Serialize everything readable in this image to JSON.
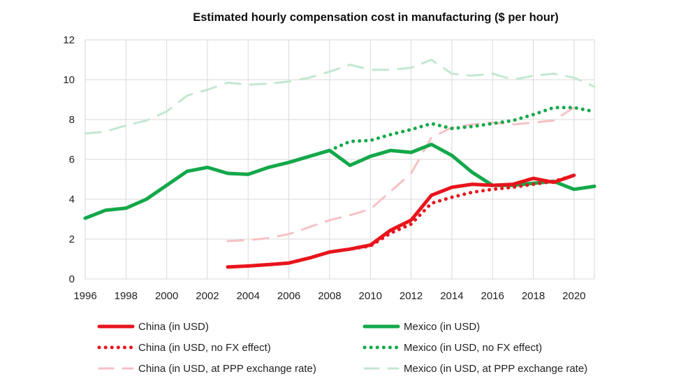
{
  "chart_data": {
    "type": "line",
    "title": "Estimated hourly compensation cost in manufacturing ($ per hour)",
    "xlabel": "",
    "ylabel": "",
    "xlim": [
      1996,
      2021
    ],
    "ylim": [
      0,
      12
    ],
    "x_ticks": [
      "1996",
      "1998",
      "2000",
      "2002",
      "2004",
      "2006",
      "2008",
      "2010",
      "2012",
      "2014",
      "2016",
      "2018",
      "2020"
    ],
    "y_ticks": [
      "0",
      "2",
      "4",
      "6",
      "8",
      "10",
      "12"
    ],
    "grid": true,
    "legend_position": "bottom",
    "colors": {
      "china": "#e8141c",
      "mexico": "#13a84a",
      "china_light": "#f7c1c4",
      "mexico_light": "#c3e8d0"
    },
    "series": [
      {
        "name": "Mexico (in USD, at PPP exchange rate)",
        "color": "#c3e8d0",
        "style": "dash",
        "width": 3,
        "x": [
          1996,
          1997,
          1998,
          1999,
          2000,
          2001,
          2002,
          2003,
          2004,
          2005,
          2006,
          2007,
          2008,
          2009,
          2010,
          2011,
          2012,
          2013,
          2014,
          2015,
          2016,
          2017,
          2018,
          2019,
          2020,
          2021
        ],
        "y": [
          7.3,
          7.4,
          7.7,
          7.95,
          8.4,
          9.2,
          9.5,
          9.85,
          9.75,
          9.8,
          9.9,
          10.1,
          10.4,
          10.75,
          10.5,
          10.5,
          10.6,
          11.0,
          10.3,
          10.2,
          10.3,
          10.0,
          10.2,
          10.3,
          10.1,
          9.65
        ]
      },
      {
        "name": "China (in USD, at PPP exchange rate)",
        "color": "#f7c1c4",
        "style": "dash",
        "width": 3,
        "x": [
          2003,
          2004,
          2005,
          2006,
          2007,
          2008,
          2009,
          2010,
          2011,
          2012,
          2013,
          2014,
          2015,
          2016,
          2017,
          2018,
          2019,
          2020
        ],
        "y": [
          1.9,
          1.95,
          2.05,
          2.25,
          2.6,
          2.95,
          3.2,
          3.5,
          4.4,
          5.3,
          7.1,
          7.6,
          7.75,
          7.85,
          7.75,
          7.85,
          7.95,
          8.6
        ]
      },
      {
        "name": "Mexico (in USD)",
        "color": "#13a84a",
        "style": "solid",
        "width": 5,
        "x": [
          1996,
          1997,
          1998,
          1999,
          2000,
          2001,
          2002,
          2003,
          2004,
          2005,
          2006,
          2007,
          2008,
          2009,
          2010,
          2011,
          2012,
          2013,
          2014,
          2015,
          2016,
          2017,
          2018,
          2019,
          2020,
          2021
        ],
        "y": [
          3.05,
          3.45,
          3.55,
          4.0,
          4.7,
          5.4,
          5.6,
          5.3,
          5.25,
          5.6,
          5.85,
          6.15,
          6.45,
          5.7,
          6.15,
          6.45,
          6.35,
          6.75,
          6.2,
          5.35,
          4.7,
          4.7,
          4.8,
          4.9,
          4.5,
          4.65
        ]
      },
      {
        "name": "Mexico (in USD, no FX effect)",
        "color": "#13a84a",
        "style": "dot",
        "width": 5,
        "x": [
          2008,
          2009,
          2010,
          2011,
          2012,
          2013,
          2014,
          2015,
          2016,
          2017,
          2018,
          2019,
          2020,
          2021
        ],
        "y": [
          6.45,
          6.9,
          6.95,
          7.25,
          7.5,
          7.8,
          7.55,
          7.65,
          7.8,
          7.95,
          8.25,
          8.6,
          8.6,
          8.4
        ]
      },
      {
        "name": "China (in USD)",
        "color": "#e8141c",
        "style": "solid",
        "width": 5,
        "x": [
          2003,
          2004,
          2005,
          2006,
          2007,
          2008,
          2009,
          2010,
          2011,
          2012,
          2013,
          2014,
          2015,
          2016,
          2017,
          2018,
          2019,
          2020
        ],
        "y": [
          0.6,
          0.65,
          0.72,
          0.8,
          1.05,
          1.35,
          1.5,
          1.7,
          2.45,
          2.95,
          4.2,
          4.6,
          4.75,
          4.7,
          4.75,
          5.05,
          4.85,
          5.2
        ]
      },
      {
        "name": "China (in USD, no FX effect)",
        "color": "#e8141c",
        "style": "dot",
        "width": 5,
        "x": [
          2003,
          2004,
          2005,
          2006,
          2007,
          2008,
          2009,
          2010,
          2011,
          2012,
          2013,
          2014,
          2015,
          2016,
          2017,
          2018,
          2019,
          2020
        ],
        "y": [
          0.6,
          0.65,
          0.72,
          0.8,
          1.05,
          1.35,
          1.5,
          1.65,
          2.3,
          2.75,
          3.8,
          4.1,
          4.35,
          4.5,
          4.6,
          4.75,
          4.9,
          5.2
        ]
      }
    ],
    "legend": [
      {
        "label": "China (in USD)",
        "color": "#e8141c",
        "style": "solid"
      },
      {
        "label": "Mexico (in USD)",
        "color": "#13a84a",
        "style": "solid"
      },
      {
        "label": "China (in USD, no FX effect)",
        "color": "#e8141c",
        "style": "dot"
      },
      {
        "label": "Mexico (in USD, no FX effect)",
        "color": "#13a84a",
        "style": "dot"
      },
      {
        "label": "China (in USD, at PPP exchange rate)",
        "color": "#f7c1c4",
        "style": "dash"
      },
      {
        "label": "Mexico (in USD, at PPP exchange rate)",
        "color": "#c3e8d0",
        "style": "dash"
      }
    ]
  }
}
